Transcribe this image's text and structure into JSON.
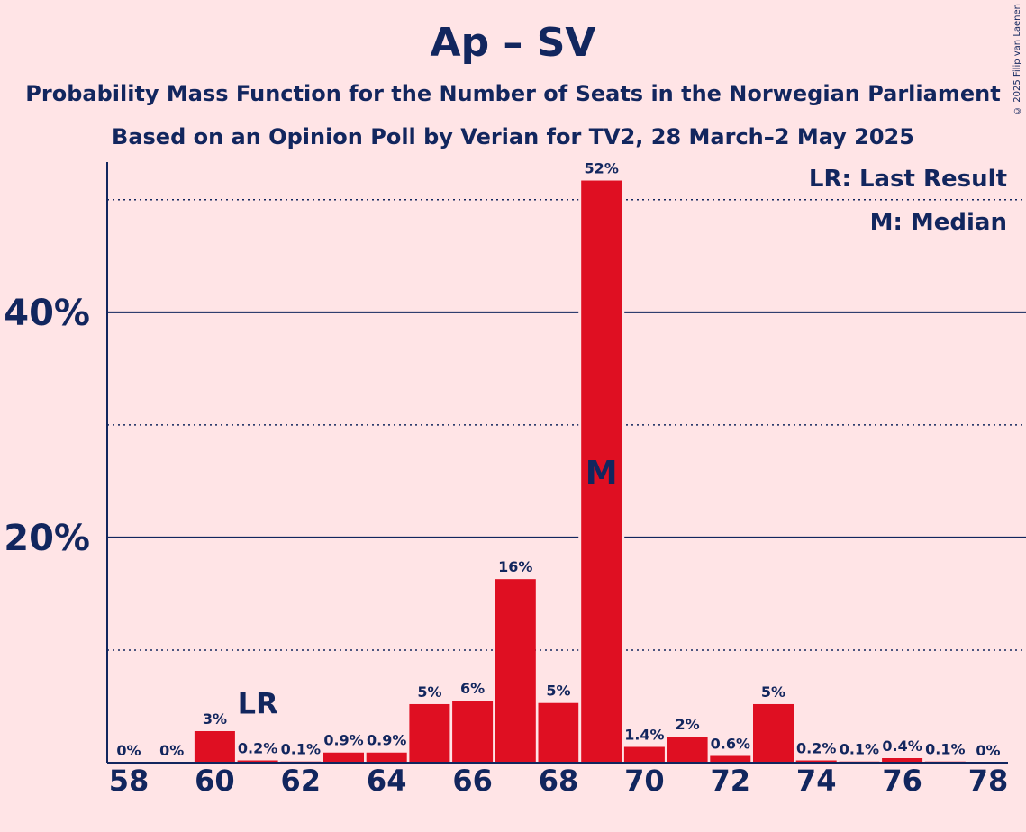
{
  "title": "Ap – SV",
  "subtitle_1": "Probability Mass Function for the Number of Seats in the Norwegian Parliament",
  "subtitle_2": "Based on an Opinion Poll by Verian for TV2, 28 March–2 May 2025",
  "copyright": "© 2025 Filip van Laenen",
  "legend": {
    "last_result": "LR: Last Result",
    "median": "M: Median"
  },
  "colors": {
    "background": "#FFE4E6",
    "bar": "#DF0F22",
    "text": "#12265E"
  },
  "chart_data": {
    "type": "bar",
    "categories": [
      58,
      59,
      60,
      61,
      62,
      63,
      64,
      65,
      66,
      67,
      68,
      69,
      70,
      71,
      72,
      73,
      74,
      75,
      76,
      77,
      78
    ],
    "values": [
      0,
      0,
      2.8,
      0.2,
      0.1,
      0.9,
      0.9,
      5.2,
      5.5,
      16.3,
      5.3,
      51.7,
      1.4,
      2.3,
      0.6,
      5.2,
      0.2,
      0.1,
      0.4,
      0.1,
      0
    ],
    "data_labels": [
      "0%",
      "0%",
      "3%",
      "0.2%",
      "0.1%",
      "0.9%",
      "0.9%",
      "5%",
      "6%",
      "16%",
      "5%",
      "52%",
      "1.4%",
      "2%",
      "0.6%",
      "5%",
      "0.2%",
      "0.1%",
      "0.4%",
      "0.1%",
      "0%"
    ],
    "x_tick_labels": [
      "58",
      "60",
      "62",
      "64",
      "66",
      "68",
      "70",
      "72",
      "74",
      "76",
      "78"
    ],
    "y_tick_labels": [
      "20%",
      "40%"
    ],
    "y_major_ticks": [
      20,
      40
    ],
    "y_minor_gridlines": [
      10,
      30,
      50
    ],
    "ylim": [
      0,
      56.3
    ],
    "last_result": {
      "seat": 61,
      "label": "LR"
    },
    "median": {
      "seat": 69,
      "label": "M"
    },
    "grid": true,
    "legend_position": "top-right"
  }
}
